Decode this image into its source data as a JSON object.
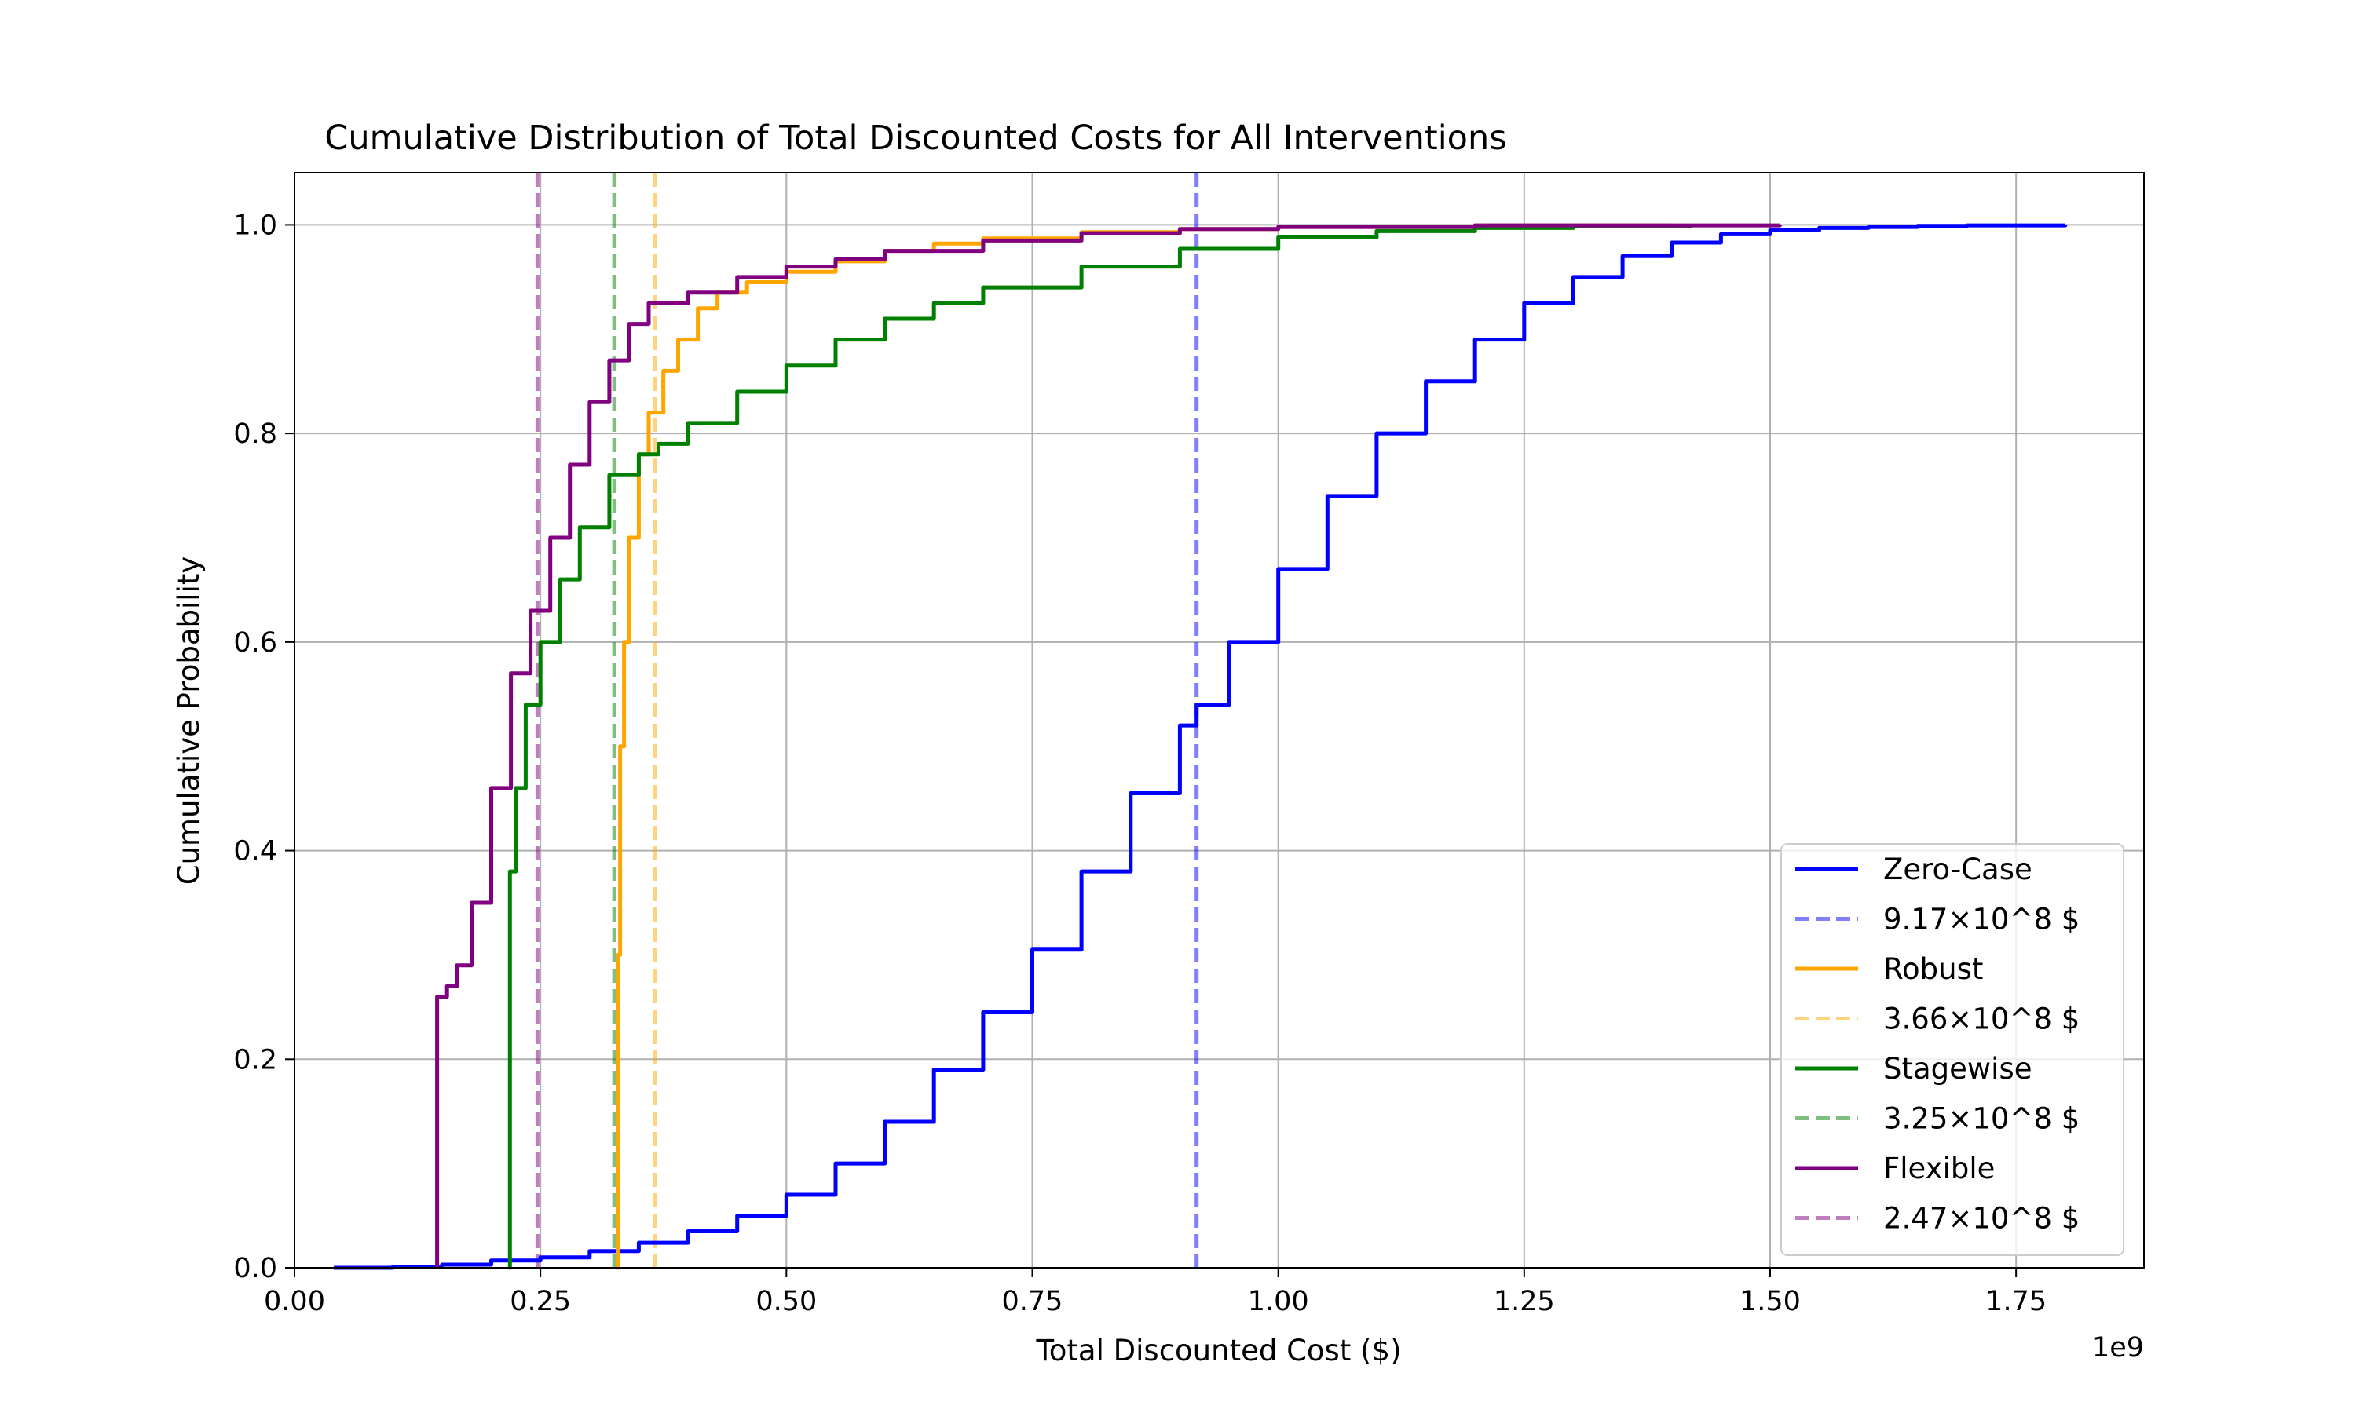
{
  "chart_data": {
    "type": "line",
    "title": "Cumulative Distribution of Total Discounted Costs for All Interventions",
    "xlabel": "Total Discounted Cost ($)",
    "ylabel": "Cumulative Probability",
    "x_offset_label": "1e9",
    "xlim": [
      0.0,
      1.88
    ],
    "ylim": [
      0.0,
      1.05
    ],
    "x_ticks": [
      "0.00",
      "0.25",
      "0.50",
      "0.75",
      "1.00",
      "1.25",
      "1.50",
      "1.75"
    ],
    "y_ticks": [
      "0.0",
      "0.2",
      "0.4",
      "0.6",
      "0.8",
      "1.0"
    ],
    "grid": true,
    "legend_position": "lower-right",
    "series": [
      {
        "name": "Zero-Case",
        "color": "#0000ff",
        "mean": 0.917,
        "mean_label": "9.17×10^8 $",
        "points": [
          [
            0.04,
            0
          ],
          [
            0.1,
            0.001
          ],
          [
            0.15,
            0.003
          ],
          [
            0.2,
            0.007
          ],
          [
            0.25,
            0.01
          ],
          [
            0.3,
            0.016
          ],
          [
            0.35,
            0.024
          ],
          [
            0.4,
            0.035
          ],
          [
            0.45,
            0.05
          ],
          [
            0.5,
            0.07
          ],
          [
            0.55,
            0.1
          ],
          [
            0.6,
            0.14
          ],
          [
            0.65,
            0.19
          ],
          [
            0.7,
            0.245
          ],
          [
            0.75,
            0.305
          ],
          [
            0.8,
            0.38
          ],
          [
            0.85,
            0.455
          ],
          [
            0.9,
            0.52
          ],
          [
            0.917,
            0.54
          ],
          [
            0.95,
            0.6
          ],
          [
            1.0,
            0.67
          ],
          [
            1.05,
            0.74
          ],
          [
            1.1,
            0.8
          ],
          [
            1.15,
            0.85
          ],
          [
            1.2,
            0.89
          ],
          [
            1.25,
            0.925
          ],
          [
            1.3,
            0.95
          ],
          [
            1.35,
            0.97
          ],
          [
            1.4,
            0.983
          ],
          [
            1.45,
            0.991
          ],
          [
            1.5,
            0.995
          ],
          [
            1.55,
            0.997
          ],
          [
            1.6,
            0.998
          ],
          [
            1.65,
            0.999
          ],
          [
            1.7,
            0.9995
          ],
          [
            1.8,
            1.0
          ]
        ]
      },
      {
        "name": "Robust",
        "color": "#ffa500",
        "mean": 0.366,
        "mean_label": "3.66×10^8 $",
        "points": [
          [
            0.328,
            0
          ],
          [
            0.329,
            0.3
          ],
          [
            0.331,
            0.5
          ],
          [
            0.335,
            0.6
          ],
          [
            0.34,
            0.7
          ],
          [
            0.35,
            0.78
          ],
          [
            0.36,
            0.82
          ],
          [
            0.375,
            0.86
          ],
          [
            0.39,
            0.89
          ],
          [
            0.41,
            0.92
          ],
          [
            0.43,
            0.935
          ],
          [
            0.46,
            0.945
          ],
          [
            0.5,
            0.955
          ],
          [
            0.55,
            0.965
          ],
          [
            0.6,
            0.975
          ],
          [
            0.65,
            0.982
          ],
          [
            0.7,
            0.987
          ],
          [
            0.8,
            0.993
          ],
          [
            0.9,
            0.996
          ],
          [
            1.0,
            0.998
          ],
          [
            1.2,
            0.9995
          ],
          [
            1.4,
            1.0
          ]
        ]
      },
      {
        "name": "Stagewise",
        "color": "#008000",
        "mean": 0.325,
        "mean_label": "3.25×10^8 $",
        "points": [
          [
            0.218,
            0
          ],
          [
            0.219,
            0.38
          ],
          [
            0.225,
            0.46
          ],
          [
            0.235,
            0.54
          ],
          [
            0.25,
            0.6
          ],
          [
            0.27,
            0.66
          ],
          [
            0.29,
            0.71
          ],
          [
            0.32,
            0.76
          ],
          [
            0.35,
            0.78
          ],
          [
            0.37,
            0.79
          ],
          [
            0.4,
            0.81
          ],
          [
            0.45,
            0.84
          ],
          [
            0.5,
            0.865
          ],
          [
            0.55,
            0.89
          ],
          [
            0.6,
            0.91
          ],
          [
            0.65,
            0.925
          ],
          [
            0.7,
            0.94
          ],
          [
            0.8,
            0.96
          ],
          [
            0.9,
            0.977
          ],
          [
            1.0,
            0.988
          ],
          [
            1.1,
            0.994
          ],
          [
            1.2,
            0.997
          ],
          [
            1.3,
            0.999
          ],
          [
            1.42,
            1.0
          ]
        ]
      },
      {
        "name": "Flexible",
        "color": "#800080",
        "mean": 0.247,
        "mean_label": "2.47×10^8 $",
        "points": [
          [
            0.145,
            0
          ],
          [
            0.145,
            0.26
          ],
          [
            0.155,
            0.27
          ],
          [
            0.165,
            0.29
          ],
          [
            0.18,
            0.35
          ],
          [
            0.2,
            0.46
          ],
          [
            0.22,
            0.57
          ],
          [
            0.24,
            0.63
          ],
          [
            0.26,
            0.7
          ],
          [
            0.28,
            0.77
          ],
          [
            0.3,
            0.83
          ],
          [
            0.32,
            0.87
          ],
          [
            0.34,
            0.905
          ],
          [
            0.36,
            0.925
          ],
          [
            0.4,
            0.935
          ],
          [
            0.45,
            0.95
          ],
          [
            0.5,
            0.96
          ],
          [
            0.55,
            0.967
          ],
          [
            0.6,
            0.975
          ],
          [
            0.7,
            0.985
          ],
          [
            0.8,
            0.992
          ],
          [
            0.9,
            0.996
          ],
          [
            1.0,
            0.998
          ],
          [
            1.2,
            0.9995
          ],
          [
            1.51,
            1.0
          ]
        ]
      }
    ]
  }
}
